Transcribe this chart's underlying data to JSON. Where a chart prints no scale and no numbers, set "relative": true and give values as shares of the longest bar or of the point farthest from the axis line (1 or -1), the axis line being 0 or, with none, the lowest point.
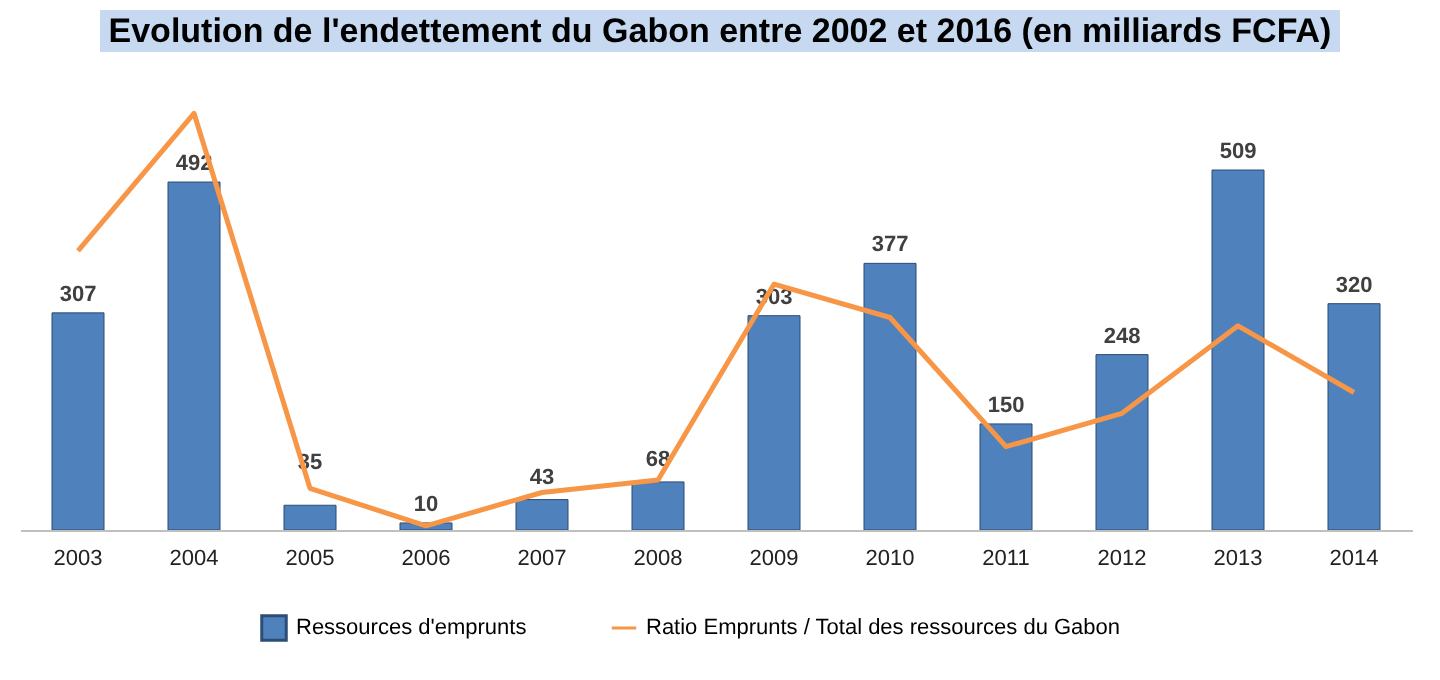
{
  "chart_data": [
    {
      "type": "bar",
      "title": "Evolution de l'endettement du Gabon entre 2002 et 2016 (en milliards FCFA)",
      "categories": [
        "2003",
        "2004",
        "2005",
        "2006",
        "2007",
        "2008",
        "2009",
        "2010",
        "2011",
        "2012",
        "2013",
        "2014"
      ],
      "series": [
        {
          "name": "Ressources d'emprunts",
          "color": "#4f81bd",
          "values": [
            307,
            492,
            35,
            10,
            43,
            68,
            303,
            377,
            150,
            248,
            509,
            320
          ]
        }
      ],
      "data_labels": true,
      "tick_labels": "x",
      "legend": "bottom"
    },
    {
      "type": "line",
      "categories": [
        null,
        null,
        null,
        null,
        null,
        null,
        null,
        null,
        null,
        null,
        null,
        null
      ],
      "relative": true,
      "tick_labels": false,
      "series": [
        {
          "name": "Ratio Emprunts / Total des ressources du Gabon",
          "color": "#f79646",
          "values": [
            0.67,
            1,
            0.1,
            0.01,
            0.09,
            0.12,
            0.59,
            0.51,
            0.2,
            0.28,
            0.49,
            0.33
          ]
        }
      ],
      "legend": "bottom"
    }
  ]
}
